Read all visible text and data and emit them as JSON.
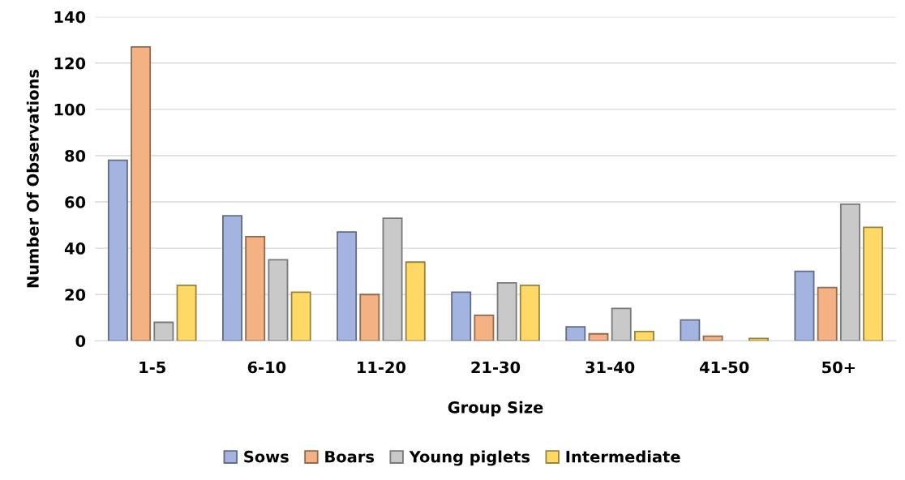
{
  "chart_data": {
    "type": "bar",
    "xlabel": "Group Size",
    "ylabel": "Number Of Observations",
    "categories": [
      "1-5",
      "6-10",
      "11-20",
      "21-30",
      "31-40",
      "41-50",
      "50+"
    ],
    "series": [
      {
        "name": "Sows",
        "color": "#a3b4e0",
        "values": [
          78,
          54,
          47,
          21,
          6,
          9,
          30
        ]
      },
      {
        "name": "Boars",
        "color": "#f4b183",
        "values": [
          127,
          45,
          20,
          11,
          3,
          2,
          23
        ]
      },
      {
        "name": "Young piglets",
        "color": "#c9c9c9",
        "values": [
          8,
          35,
          53,
          25,
          14,
          null,
          59
        ]
      },
      {
        "name": "Intermediate",
        "color": "#ffd966",
        "values": [
          24,
          21,
          34,
          24,
          4,
          1,
          49
        ]
      }
    ],
    "ylim": [
      0,
      140
    ],
    "yticks": [
      0,
      20,
      40,
      60,
      80,
      100,
      120,
      140
    ],
    "grid": "y",
    "legend": "bottom"
  }
}
